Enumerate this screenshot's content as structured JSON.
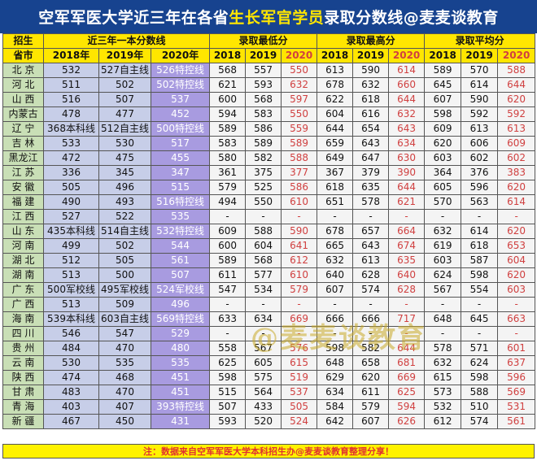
{
  "title": {
    "part1": "空军军医大学近三年在各省",
    "highlight": "生长军官学员",
    "part2": "录取分数线@麦麦谈教育"
  },
  "header": {
    "corner_top": "招生",
    "corner_bottom": "省市",
    "group_control": "近三年一本分数线",
    "group_low": "录取最低分",
    "group_high": "录取最高分",
    "group_avg": "录取平均分",
    "control_years": [
      "2018年",
      "2019年",
      "2020年"
    ],
    "score_years": [
      "2018",
      "2019",
      "2020"
    ]
  },
  "rows": [
    [
      "北 京",
      "532",
      "527自主线",
      "526特控线",
      "568",
      "557",
      "550",
      "613",
      "590",
      "614",
      "589",
      "570",
      "588"
    ],
    [
      "河 北",
      "511",
      "502",
      "502特控线",
      "621",
      "593",
      "632",
      "678",
      "632",
      "660",
      "645",
      "614",
      "644"
    ],
    [
      "山 西",
      "516",
      "507",
      "537",
      "600",
      "568",
      "597",
      "622",
      "618",
      "644",
      "607",
      "590",
      "620"
    ],
    [
      "内蒙古",
      "478",
      "477",
      "452",
      "594",
      "583",
      "550",
      "604",
      "616",
      "632",
      "598",
      "592",
      "592"
    ],
    [
      "辽 宁",
      "368本科线",
      "512自主线",
      "500特控线",
      "589",
      "586",
      "559",
      "644",
      "654",
      "643",
      "609",
      "613",
      "613"
    ],
    [
      "吉 林",
      "533",
      "530",
      "517",
      "583",
      "589",
      "589",
      "659",
      "643",
      "634",
      "620",
      "606",
      "609"
    ],
    [
      "黑龙江",
      "472",
      "475",
      "455",
      "580",
      "582",
      "588",
      "649",
      "647",
      "630",
      "603",
      "602",
      "602"
    ],
    [
      "江 苏",
      "336",
      "345",
      "347",
      "361",
      "375",
      "377",
      "367",
      "379",
      "390",
      "364",
      "376",
      "383"
    ],
    [
      "安 徽",
      "505",
      "496",
      "515",
      "579",
      "525",
      "586",
      "618",
      "635",
      "644",
      "605",
      "596",
      "620"
    ],
    [
      "福 建",
      "490",
      "493",
      "516特控线",
      "494",
      "550",
      "610",
      "651",
      "578",
      "621",
      "570",
      "563",
      "614"
    ],
    [
      "江 西",
      "527",
      "522",
      "535",
      "-",
      "-",
      "-",
      "-",
      "-",
      "-",
      "-",
      "-",
      "-"
    ],
    [
      "山 东",
      "435本科线",
      "514自主线",
      "532特控线",
      "609",
      "588",
      "590",
      "678",
      "657",
      "664",
      "632",
      "614",
      "620"
    ],
    [
      "河 南",
      "499",
      "502",
      "544",
      "600",
      "604",
      "641",
      "665",
      "643",
      "674",
      "619",
      "618",
      "653"
    ],
    [
      "湖 北",
      "512",
      "505",
      "561",
      "589",
      "568",
      "612",
      "632",
      "613",
      "635",
      "603",
      "587",
      "604"
    ],
    [
      "湖 南",
      "513",
      "500",
      "507",
      "611",
      "577",
      "610",
      "640",
      "628",
      "640",
      "624",
      "598",
      "620"
    ],
    [
      "广 东",
      "500军校线",
      "495军校线",
      "524军校线",
      "547",
      "534",
      "579",
      "607",
      "574",
      "628",
      "567",
      "554",
      "603"
    ],
    [
      "广 西",
      "513",
      "509",
      "496",
      "-",
      "-",
      "-",
      "-",
      "-",
      "-",
      "-",
      "-",
      "-"
    ],
    [
      "海 南",
      "539本科线",
      "603自主线",
      "569特控线",
      "633",
      "634",
      "669",
      "666",
      "666",
      "717",
      "648",
      "645",
      "663"
    ],
    [
      "四 川",
      "546",
      "547",
      "529",
      "-",
      "-",
      "-",
      "-",
      "-",
      "-",
      "-",
      "-",
      "-"
    ],
    [
      "贵 州",
      "484",
      "470",
      "480",
      "558",
      "567",
      "576",
      "598",
      "582",
      "644",
      "578",
      "571",
      "601"
    ],
    [
      "云 南",
      "530",
      "535",
      "535",
      "625",
      "605",
      "615",
      "648",
      "658",
      "681",
      "632",
      "624",
      "637"
    ],
    [
      "陕 西",
      "474",
      "468",
      "451",
      "598",
      "575",
      "519",
      "629",
      "620",
      "669",
      "615",
      "598",
      "596"
    ],
    [
      "甘 肃",
      "483",
      "470",
      "451",
      "515",
      "564",
      "537",
      "634",
      "611",
      "625",
      "573",
      "588",
      "569"
    ],
    [
      "青 海",
      "403",
      "407",
      "393特控线",
      "507",
      "433",
      "505",
      "584",
      "579",
      "594",
      "532",
      "510",
      "531"
    ],
    [
      "新 疆",
      "467",
      "450",
      "431",
      "593",
      "520",
      "524",
      "642",
      "607",
      "626",
      "612",
      "574",
      "561"
    ]
  ],
  "footer": "注：数据来自空军军医大学本科招生办@麦麦谈教育整理分享！",
  "watermark": "@麦麦谈教育",
  "colors": {
    "title_bg": "#17438f",
    "title_highlight": "#ffe600",
    "header_bg": "#ffe600",
    "province_bg": "#c9dfb6",
    "control_bg": "#c7cee8",
    "control_2020_bg": "#a89be0",
    "red_2020": "#d04040"
  }
}
